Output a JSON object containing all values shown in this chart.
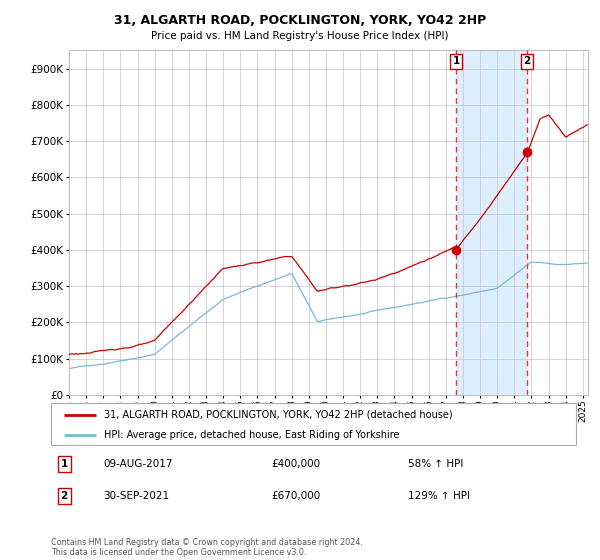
{
  "title": "31, ALGARTH ROAD, POCKLINGTON, YORK, YO42 2HP",
  "subtitle": "Price paid vs. HM Land Registry's House Price Index (HPI)",
  "legend_line1": "31, ALGARTH ROAD, POCKLINGTON, YORK, YO42 2HP (detached house)",
  "legend_line2": "HPI: Average price, detached house, East Riding of Yorkshire",
  "annotation1_date": "09-AUG-2017",
  "annotation1_price": 400000,
  "annotation1_price_str": "£400,000",
  "annotation1_pct": "58% ↑ HPI",
  "annotation2_date": "30-SEP-2021",
  "annotation2_price": 670000,
  "annotation2_price_str": "£670,000",
  "annotation2_pct": "129% ↑ HPI",
  "footer": "Contains HM Land Registry data © Crown copyright and database right 2024.\nThis data is licensed under the Open Government Licence v3.0.",
  "hpi_color": "#7ab8d9",
  "price_color": "#cc0000",
  "marker_color": "#cc0000",
  "vline_color": "#ee3333",
  "shade_color": "#ddeeff",
  "background_color": "#ffffff",
  "grid_color": "#cccccc",
  "chart_bg": "#ffffff",
  "ylim": [
    0,
    950000
  ],
  "yticks": [
    0,
    100000,
    200000,
    300000,
    400000,
    500000,
    600000,
    700000,
    800000,
    900000
  ],
  "sale1_year": 2017.6,
  "sale2_year": 2021.75
}
